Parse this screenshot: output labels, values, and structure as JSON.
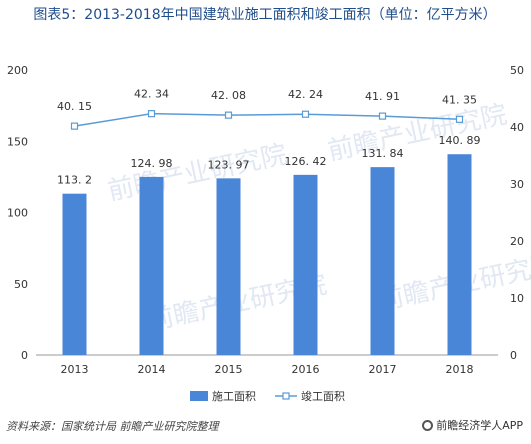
{
  "title": "图表5：2013-2018年中国建筑业施工面积和竣工面积（单位：亿平方米）",
  "source": "资料来源：国家统计局 前瞻产业研究院整理",
  "brand": "前瞻经济学人APP",
  "watermark": "前瞻产业研究院",
  "colors": {
    "bar": "#4a86d8",
    "line": "#5b9bd5",
    "title": "#1f4e8c"
  },
  "chart_data": {
    "type": "bar",
    "categories": [
      "2013",
      "2014",
      "2015",
      "2016",
      "2017",
      "2018"
    ],
    "series": [
      {
        "name": "施工面积",
        "type": "bar",
        "axis": "left",
        "values": [
          113.2,
          124.98,
          123.97,
          126.42,
          131.84,
          140.89
        ],
        "labels": [
          "113. 2",
          "124. 98",
          "123. 97",
          "126. 42",
          "131. 84",
          "140. 89"
        ]
      },
      {
        "name": "竣工面积",
        "type": "line",
        "axis": "right",
        "values": [
          40.15,
          42.34,
          42.08,
          42.24,
          41.91,
          41.35
        ],
        "labels": [
          "40. 15",
          "42. 34",
          "42. 08",
          "42. 24",
          "41. 91",
          "41. 35"
        ]
      }
    ],
    "left_axis": {
      "ylim": [
        0,
        200
      ],
      "ticks": [
        "0",
        "50",
        "100",
        "150",
        "200"
      ]
    },
    "right_axis": {
      "ylim": [
        0,
        50
      ],
      "ticks": [
        "0",
        "10",
        "20",
        "30",
        "40",
        "50"
      ]
    },
    "legend_position": "bottom"
  }
}
